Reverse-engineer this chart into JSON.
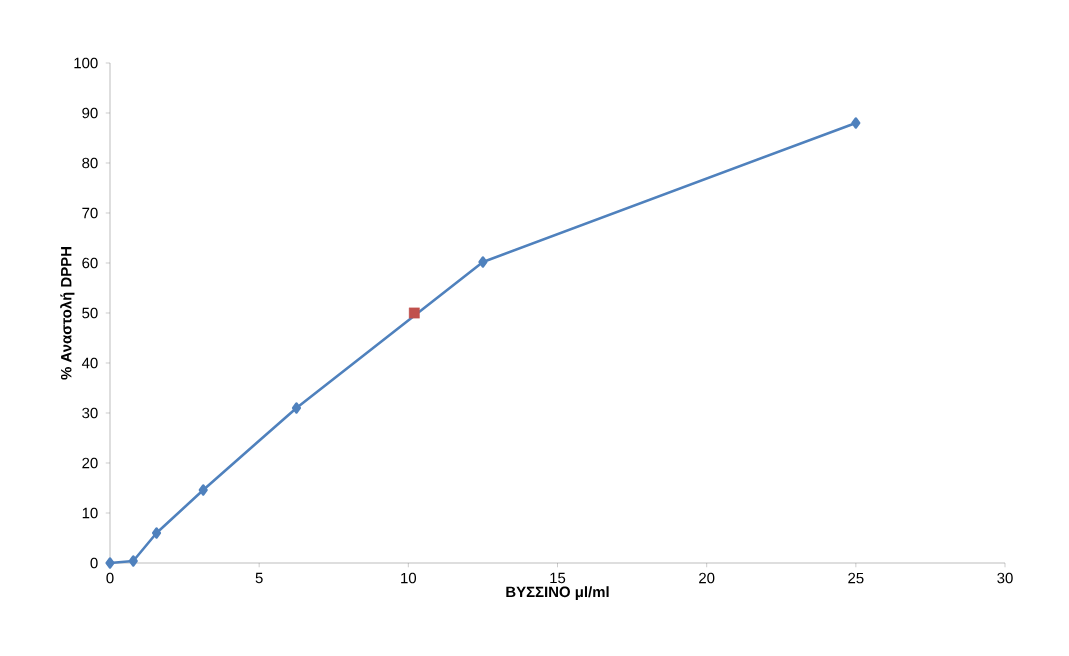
{
  "chart_data": {
    "type": "line",
    "xlabel": "ΒΥΣΣΙΝΟ μl/ml",
    "ylabel": "% Αναστολή DPPH",
    "xlim": [
      0,
      30
    ],
    "ylim": [
      0,
      100
    ],
    "xticks": [
      0,
      5,
      10,
      15,
      20,
      25,
      30
    ],
    "yticks": [
      0,
      10,
      20,
      30,
      40,
      50,
      60,
      70,
      80,
      90,
      100
    ],
    "series": [
      {
        "type": "line",
        "color": "#4f81bd",
        "marker": "diamond",
        "line_style": "solid",
        "x": [
          0,
          0.78,
          1.56,
          3.125,
          6.25,
          12.5,
          25
        ],
        "values": [
          0,
          0.4,
          6,
          14.6,
          31,
          60.2,
          88
        ]
      },
      {
        "type": "scatter",
        "color": "#c0504d",
        "marker": "square",
        "x": [
          10.2
        ],
        "values": [
          50
        ]
      }
    ]
  }
}
